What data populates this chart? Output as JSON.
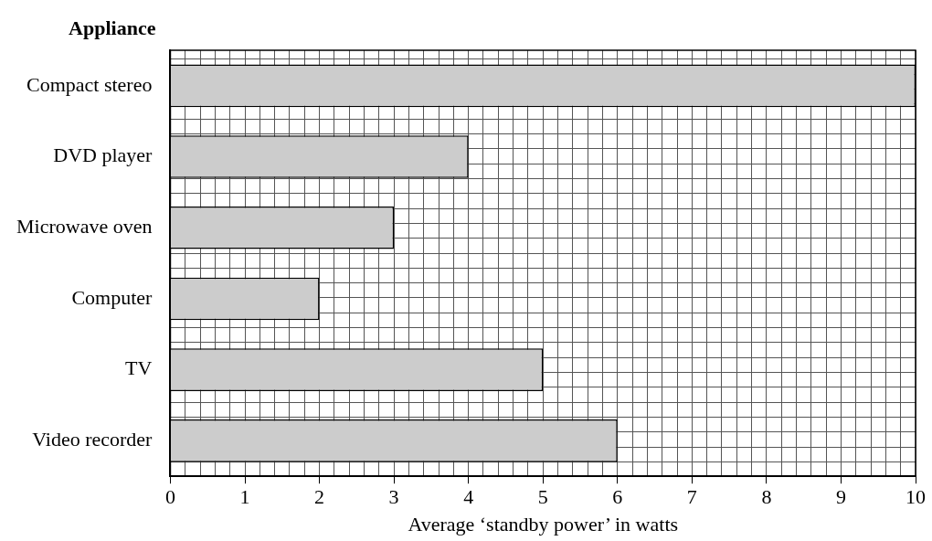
{
  "chart_data": {
    "type": "bar",
    "orientation": "horizontal",
    "ylabel": "Appliance",
    "xlabel": "Average ‘standby power’ in watts",
    "categories": [
      "Compact stereo",
      "DVD player",
      "Microwave oven",
      "Computer",
      "TV",
      "Video recorder"
    ],
    "values": [
      10,
      4,
      3,
      2,
      5,
      6
    ],
    "color": "#cccccc",
    "xlim": [
      0,
      10
    ],
    "xticks": [
      0,
      {
        "value": 0.2,
        "label": null
      },
      {
        "value": 0.4,
        "label": null
      },
      {
        "value": 0.6,
        "label": null
      },
      {
        "value": 0.8,
        "label": null
      },
      1,
      {
        "value": 1.2,
        "label": null
      },
      {
        "value": 1.4,
        "label": null
      },
      {
        "value": 1.6,
        "label": null
      },
      {
        "value": 1.8,
        "label": null
      },
      2,
      {
        "value": 2.2,
        "label": null
      },
      {
        "value": 2.4,
        "label": null
      },
      {
        "value": 2.6,
        "label": null
      },
      {
        "value": 2.8,
        "label": null
      },
      3,
      {
        "value": 3.2,
        "label": null
      },
      {
        "value": 3.4,
        "label": null
      },
      {
        "value": 3.6,
        "label": null
      },
      {
        "value": 3.8,
        "label": null
      },
      4,
      {
        "value": 4.2,
        "label": null
      },
      {
        "value": 4.4,
        "label": null
      },
      {
        "value": 4.6,
        "label": null
      },
      {
        "value": 4.8,
        "label": null
      },
      5,
      {
        "value": 5.2,
        "label": null
      },
      {
        "value": 5.4,
        "label": null
      },
      {
        "value": 5.6,
        "label": null
      },
      {
        "value": 5.8,
        "label": null
      },
      6,
      {
        "value": 6.2,
        "label": null
      },
      {
        "value": 6.4,
        "label": null
      },
      {
        "value": 6.6,
        "label": null
      },
      {
        "value": 6.8,
        "label": null
      },
      7,
      {
        "value": 7.2,
        "label": null
      },
      {
        "value": 7.4,
        "label": null
      },
      {
        "value": 7.6,
        "label": null
      },
      {
        "value": 7.8,
        "label": null
      },
      8,
      {
        "value": 8.2,
        "label": null
      },
      {
        "value": 8.4,
        "label": null
      },
      {
        "value": 8.6,
        "label": null
      },
      {
        "value": 8.8,
        "label": null
      },
      9,
      {
        "value": 9.2,
        "label": null
      },
      {
        "value": 9.4,
        "label": null
      },
      {
        "value": 9.6,
        "label": null
      },
      {
        "value": 9.8,
        "label": null
      },
      10
    ],
    "grid": true,
    "legend": false
  }
}
